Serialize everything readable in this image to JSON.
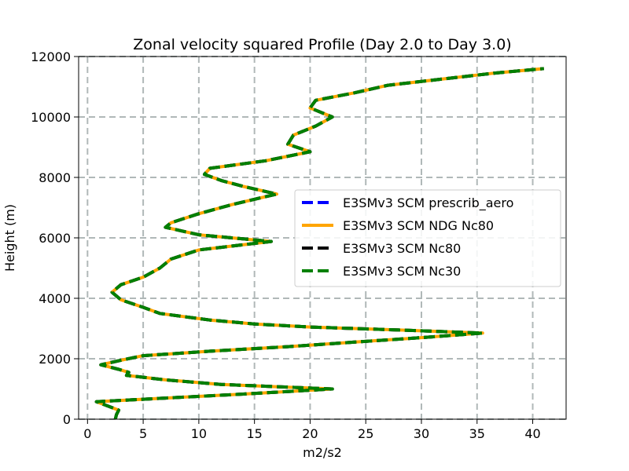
{
  "chart_data": {
    "type": "line",
    "title": "Zonal velocity squared Profile (Day 2.0 to Day 3.0)",
    "xlabel": "m2/s2",
    "ylabel": "Height (m)",
    "xlim": [
      -0.8,
      43
    ],
    "ylim": [
      0,
      12000
    ],
    "xticks": [
      0,
      5,
      10,
      15,
      20,
      25,
      30,
      35,
      40
    ],
    "yticks": [
      0,
      2000,
      4000,
      6000,
      8000,
      10000,
      12000
    ],
    "grid": true,
    "legend_position": "center-right",
    "series": [
      {
        "name": "E3SMv3 SCM prescrib_aero",
        "color": "#0000ff",
        "style": "dashed",
        "y": [
          0,
          150,
          300,
          580,
          700,
          830,
          1000,
          1150,
          1300,
          1450,
          1550,
          1650,
          1800,
          1950,
          2100,
          2250,
          2400,
          2550,
          2700,
          2850,
          2950,
          3050,
          3150,
          3280,
          3500,
          3700,
          3950,
          4200,
          4450,
          4700,
          5000,
          5300,
          5600,
          5880,
          6100,
          6350,
          6500,
          6800,
          7100,
          7450,
          7700,
          7900,
          8100,
          8300,
          8550,
          8850,
          9100,
          9400,
          9700,
          10000,
          10300,
          10550,
          10800,
          11050,
          11300,
          11450,
          11600
        ],
        "values": [
          2.5,
          2.6,
          2.8,
          0.8,
          7.0,
          14.0,
          22.0,
          12.0,
          7.0,
          3.5,
          3.7,
          2.8,
          1.2,
          3.0,
          5.0,
          11.0,
          18.0,
          24.0,
          30.0,
          35.5,
          28.0,
          20.0,
          15.0,
          11.0,
          6.5,
          5.0,
          3.0,
          2.2,
          3.0,
          5.0,
          6.5,
          7.5,
          10.0,
          16.5,
          10.0,
          7.0,
          7.5,
          10.0,
          13.0,
          17.0,
          14.0,
          12.0,
          10.5,
          11.0,
          16.0,
          20.0,
          18.0,
          18.5,
          20.5,
          22.0,
          20.0,
          20.5,
          24.0,
          27.0,
          33.0,
          36.5,
          41.0
        ]
      },
      {
        "name": "E3SMv3 SCM NDG Nc80",
        "color": "#ffa500",
        "style": "solid",
        "y": [
          0,
          150,
          300,
          580,
          700,
          830,
          1000,
          1150,
          1300,
          1450,
          1550,
          1650,
          1800,
          1950,
          2100,
          2250,
          2400,
          2550,
          2700,
          2850,
          2950,
          3050,
          3150,
          3280,
          3500,
          3700,
          3950,
          4200,
          4450,
          4700,
          5000,
          5300,
          5600,
          5880,
          6100,
          6350,
          6500,
          6800,
          7100,
          7450,
          7700,
          7900,
          8100,
          8300,
          8550,
          8850,
          9100,
          9400,
          9700,
          10000,
          10300,
          10550,
          10800,
          11050,
          11300,
          11450,
          11600
        ],
        "values": [
          2.5,
          2.6,
          2.8,
          0.8,
          7.0,
          14.0,
          22.0,
          12.0,
          7.0,
          3.5,
          3.7,
          2.8,
          1.2,
          3.0,
          5.0,
          11.0,
          18.0,
          24.0,
          30.0,
          35.5,
          28.0,
          20.0,
          15.0,
          11.0,
          6.5,
          5.0,
          3.0,
          2.2,
          3.0,
          5.0,
          6.5,
          7.5,
          10.0,
          16.5,
          10.0,
          7.0,
          7.5,
          10.0,
          13.0,
          17.0,
          14.0,
          12.0,
          10.5,
          11.0,
          16.0,
          20.0,
          18.0,
          18.5,
          20.5,
          22.0,
          20.0,
          20.5,
          24.0,
          27.0,
          33.0,
          36.5,
          41.0
        ]
      },
      {
        "name": "E3SMv3 SCM Nc80",
        "color": "#000000",
        "style": "dashed",
        "y": [
          0,
          150,
          300,
          580,
          700,
          830,
          1000,
          1150,
          1300,
          1450,
          1550,
          1650,
          1800,
          1950,
          2100,
          2250,
          2400,
          2550,
          2700,
          2850,
          2950,
          3050,
          3150,
          3280,
          3500,
          3700,
          3950,
          4200,
          4450,
          4700,
          5000,
          5300,
          5600,
          5880,
          6100,
          6350,
          6500,
          6800,
          7100,
          7450,
          7700,
          7900,
          8100,
          8300,
          8550,
          8850,
          9100,
          9400,
          9700,
          10000,
          10300,
          10550,
          10800,
          11050,
          11300,
          11450,
          11600
        ],
        "values": [
          2.5,
          2.6,
          2.8,
          0.8,
          7.0,
          14.0,
          22.0,
          12.0,
          7.0,
          3.5,
          3.7,
          2.8,
          1.2,
          3.0,
          5.0,
          11.0,
          18.0,
          24.0,
          30.0,
          35.5,
          28.0,
          20.0,
          15.0,
          11.0,
          6.5,
          5.0,
          3.0,
          2.2,
          3.0,
          5.0,
          6.5,
          7.5,
          10.0,
          16.5,
          10.0,
          7.0,
          7.5,
          10.0,
          13.0,
          17.0,
          14.0,
          12.0,
          10.5,
          11.0,
          16.0,
          20.0,
          18.0,
          18.5,
          20.5,
          22.0,
          20.0,
          20.5,
          24.0,
          27.0,
          33.0,
          36.5,
          41.0
        ]
      },
      {
        "name": "E3SMv3 SCM Nc30",
        "color": "#008000",
        "style": "dashed",
        "y": [
          0,
          150,
          300,
          580,
          700,
          830,
          1000,
          1150,
          1300,
          1450,
          1550,
          1650,
          1800,
          1950,
          2100,
          2250,
          2400,
          2550,
          2700,
          2850,
          2950,
          3050,
          3150,
          3280,
          3500,
          3700,
          3950,
          4200,
          4450,
          4700,
          5000,
          5300,
          5600,
          5880,
          6100,
          6350,
          6500,
          6800,
          7100,
          7450,
          7700,
          7900,
          8100,
          8300,
          8550,
          8850,
          9100,
          9400,
          9700,
          10000,
          10300,
          10550,
          10800,
          11050,
          11300,
          11450,
          11600
        ],
        "values": [
          2.5,
          2.6,
          2.8,
          0.8,
          7.0,
          14.0,
          22.0,
          12.0,
          7.0,
          3.5,
          3.7,
          2.8,
          1.2,
          3.0,
          5.0,
          11.0,
          18.0,
          24.0,
          30.0,
          35.5,
          28.0,
          20.0,
          15.0,
          11.0,
          6.5,
          5.0,
          3.0,
          2.2,
          3.0,
          5.0,
          6.5,
          7.5,
          10.0,
          16.5,
          10.0,
          7.0,
          7.5,
          10.0,
          13.0,
          17.0,
          14.0,
          12.0,
          10.5,
          11.0,
          16.0,
          20.0,
          18.0,
          18.5,
          20.5,
          22.0,
          20.0,
          20.5,
          24.0,
          27.0,
          33.0,
          36.5,
          41.0
        ]
      }
    ]
  }
}
